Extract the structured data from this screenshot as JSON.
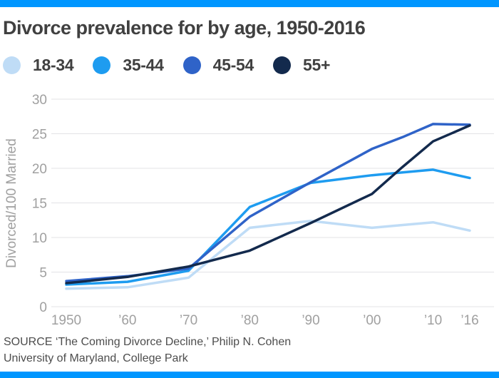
{
  "page": {
    "title": "Divorce prevalence for by age, 1950-2016",
    "accent_color": "#0096FF",
    "source_line1": "SOURCE ‘The Coming Divorce Decline,’ Philip N. Cohen",
    "source_line2": "University of Maryland, College Park"
  },
  "legend": [
    {
      "label": "18-34",
      "color": "#BFDCF6"
    },
    {
      "label": "35-44",
      "color": "#1E9CF0"
    },
    {
      "label": "45-54",
      "color": "#2F63C8"
    },
    {
      "label": "55+",
      "color": "#132A4D"
    }
  ],
  "chart_data": {
    "type": "line",
    "title": "Divorce prevalence for by age, 1950-2016",
    "ylabel": "Divorced/100 Married",
    "xlabel": "",
    "ylim": [
      0,
      30
    ],
    "yticks": [
      0,
      5,
      10,
      15,
      20,
      25,
      30
    ],
    "grid": true,
    "legend_position": "top",
    "x": [
      1950,
      1960,
      1970,
      1980,
      1990,
      2000,
      2005,
      2010,
      2016
    ],
    "x_axis_ticks": [
      {
        "year": 1950,
        "label": "1950"
      },
      {
        "year": 1960,
        "label": "’60"
      },
      {
        "year": 1970,
        "label": "’70"
      },
      {
        "year": 1980,
        "label": "’80"
      },
      {
        "year": 1990,
        "label": "’90"
      },
      {
        "year": 2000,
        "label": "’00"
      },
      {
        "year": 2010,
        "label": "’10"
      },
      {
        "year": 2016,
        "label": "’16"
      }
    ],
    "series": [
      {
        "name": "18-34",
        "color": "#BFDCF6",
        "values": [
          2.6,
          2.8,
          4.2,
          11.4,
          12.4,
          11.4,
          11.8,
          12.2,
          11.0
        ]
      },
      {
        "name": "35-44",
        "color": "#1E9CF0",
        "values": [
          3.2,
          3.6,
          5.2,
          14.4,
          17.9,
          19.0,
          19.4,
          19.8,
          18.6
        ]
      },
      {
        "name": "45-54",
        "color": "#2F63C8",
        "values": [
          3.7,
          4.4,
          5.5,
          13.0,
          18.0,
          22.8,
          24.5,
          26.4,
          26.3
        ]
      },
      {
        "name": "55+",
        "color": "#132A4D",
        "values": [
          3.4,
          4.3,
          5.8,
          8.1,
          12.1,
          16.3,
          20.2,
          23.9,
          26.2
        ]
      }
    ]
  }
}
